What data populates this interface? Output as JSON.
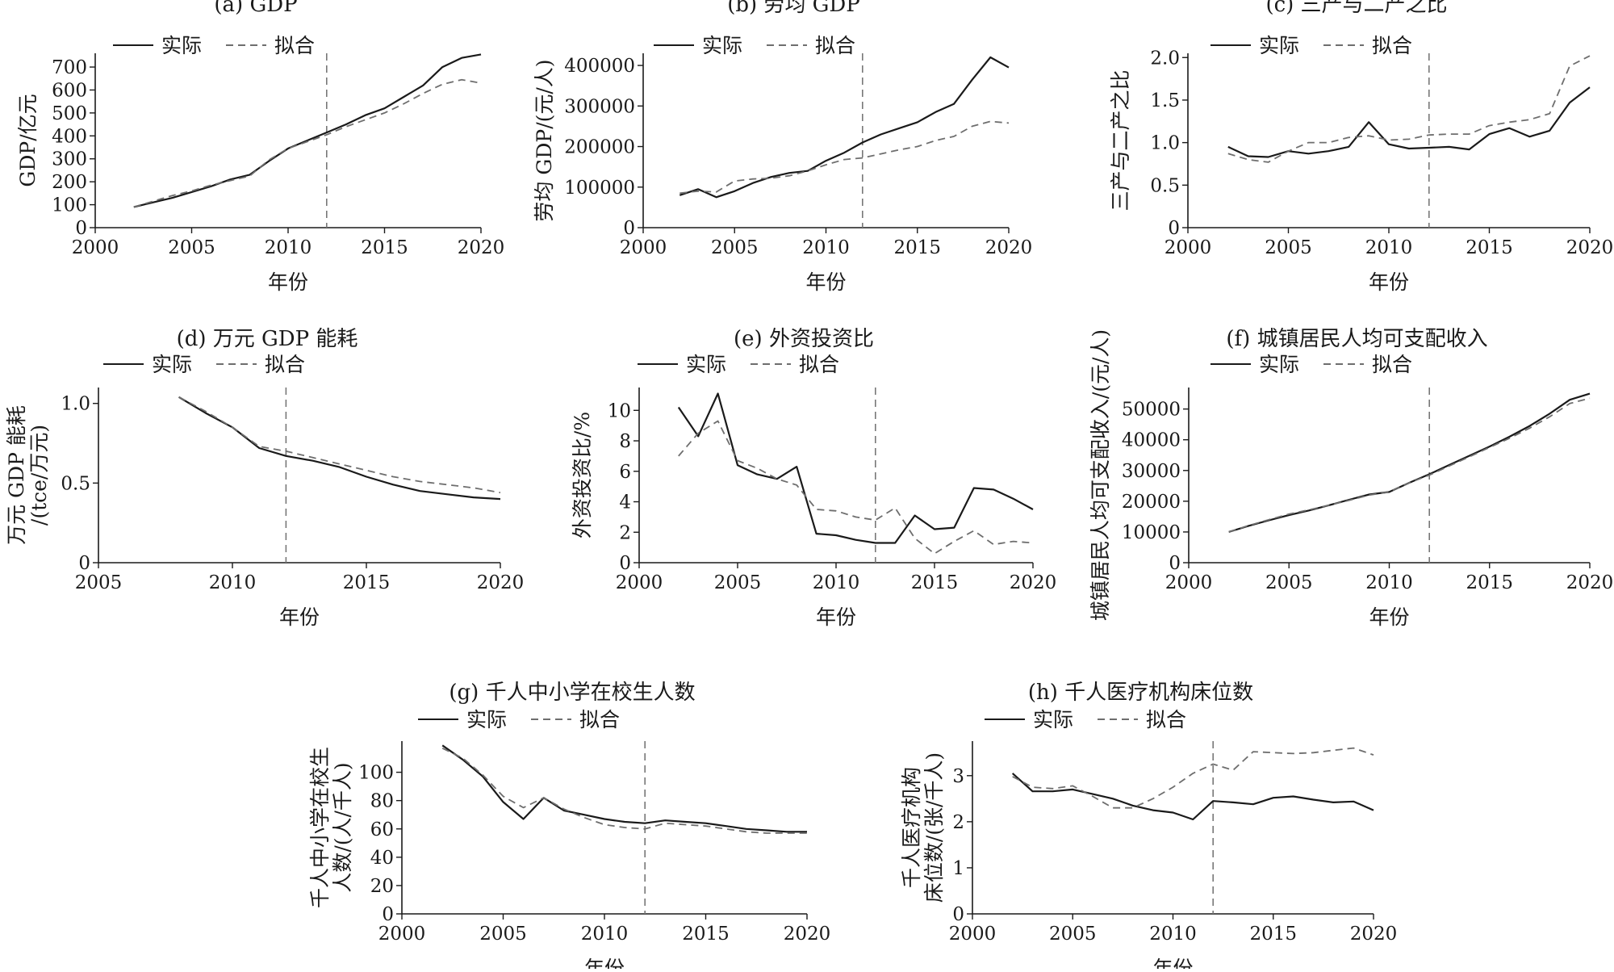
{
  "figure": {
    "legend": {
      "actual": "实际",
      "fitted": "拟合"
    },
    "styles": {
      "actual_color": "#1a1a1a",
      "fitted_color": "#6e6e6e",
      "vline_color": "#777777",
      "fitted_dash": "dashed",
      "vline_dash": "dashed"
    }
  },
  "chart_data": [
    {
      "id": "a",
      "type": "line",
      "title": "(a) GDP",
      "xlabel": "年份",
      "ylabel": "GDP/亿元",
      "ylabel_lines": [
        "GDP/亿元"
      ],
      "xlim": [
        2000,
        2020
      ],
      "ylim": [
        0,
        760
      ],
      "xticks": [
        2000,
        2005,
        2010,
        2015,
        2020
      ],
      "yticks": [
        0,
        100,
        200,
        300,
        400,
        500,
        600,
        700
      ],
      "ytick_labels": [
        "0",
        "100",
        "200",
        "300",
        "400",
        "500",
        "600",
        "700"
      ],
      "vline": 2012,
      "x": [
        2002,
        2003,
        2004,
        2005,
        2006,
        2007,
        2008,
        2009,
        2010,
        2011,
        2012,
        2013,
        2014,
        2015,
        2016,
        2017,
        2018,
        2019,
        2020
      ],
      "series": [
        {
          "name": "实际",
          "values": [
            90,
            110,
            130,
            155,
            180,
            210,
            230,
            290,
            345,
            380,
            415,
            450,
            490,
            520,
            570,
            620,
            700,
            740,
            755
          ]
        },
        {
          "name": "拟合",
          "values": [
            90,
            115,
            140,
            160,
            185,
            205,
            225,
            295,
            345,
            375,
            405,
            440,
            470,
            500,
            540,
            585,
            625,
            645,
            630
          ]
        }
      ]
    },
    {
      "id": "b",
      "type": "line",
      "title": "(b) 劳均 GDP",
      "xlabel": "年份",
      "ylabel": "劳均 GDP/(元/人)",
      "ylabel_lines": [
        "劳均 GDP/(元/人)"
      ],
      "xlim": [
        2000,
        2020
      ],
      "ylim": [
        0,
        430000
      ],
      "xticks": [
        2000,
        2005,
        2010,
        2015,
        2020
      ],
      "yticks": [
        0,
        100000,
        200000,
        300000,
        400000
      ],
      "ytick_labels": [
        "0",
        "100000",
        "200000",
        "300000",
        "400000"
      ],
      "vline": 2012,
      "x": [
        2002,
        2003,
        2004,
        2005,
        2006,
        2007,
        2008,
        2009,
        2010,
        2011,
        2012,
        2013,
        2014,
        2015,
        2016,
        2017,
        2018,
        2019,
        2020
      ],
      "series": [
        {
          "name": "实际",
          "values": [
            80000,
            95000,
            75000,
            90000,
            110000,
            125000,
            135000,
            140000,
            165000,
            185000,
            210000,
            230000,
            245000,
            260000,
            285000,
            305000,
            365000,
            420000,
            395000
          ]
        },
        {
          "name": "拟合",
          "values": [
            85000,
            90000,
            88000,
            115000,
            120000,
            122000,
            128000,
            140000,
            155000,
            168000,
            172000,
            182000,
            192000,
            200000,
            215000,
            225000,
            250000,
            262000,
            258000
          ]
        }
      ]
    },
    {
      "id": "c",
      "type": "line",
      "title": "(c) 三产与二产之比",
      "xlabel": "年份",
      "ylabel": "三产与二产之比",
      "ylabel_lines": [
        "三产与二产之比"
      ],
      "xlim": [
        2000,
        2020
      ],
      "ylim": [
        0,
        2.05
      ],
      "xticks": [
        2000,
        2005,
        2010,
        2015,
        2020
      ],
      "yticks": [
        0,
        0.5,
        1.0,
        1.5,
        2.0
      ],
      "ytick_labels": [
        "0",
        "0.5",
        "1.0",
        "1.5",
        "2.0"
      ],
      "vline": 2012,
      "x": [
        2002,
        2003,
        2004,
        2005,
        2006,
        2007,
        2008,
        2009,
        2010,
        2011,
        2012,
        2013,
        2014,
        2015,
        2016,
        2017,
        2018,
        2019,
        2020
      ],
      "series": [
        {
          "name": "实际",
          "values": [
            0.95,
            0.84,
            0.83,
            0.9,
            0.87,
            0.9,
            0.95,
            1.24,
            0.98,
            0.93,
            0.94,
            0.95,
            0.92,
            1.1,
            1.17,
            1.07,
            1.14,
            1.47,
            1.65
          ]
        },
        {
          "name": "拟合",
          "values": [
            0.87,
            0.8,
            0.77,
            0.9,
            1.0,
            1.0,
            1.06,
            1.08,
            1.03,
            1.04,
            1.09,
            1.1,
            1.1,
            1.2,
            1.24,
            1.27,
            1.34,
            1.9,
            2.02
          ]
        }
      ]
    },
    {
      "id": "d",
      "type": "line",
      "title": "(d) 万元 GDP 能耗",
      "xlabel": "年份",
      "ylabel": "万元 GDP 能耗 /(tce/万元)",
      "ylabel_lines": [
        "万元 GDP 能耗",
        "/(tce/万元)"
      ],
      "xlim": [
        2005,
        2020
      ],
      "ylim": [
        0,
        1.1
      ],
      "xticks": [
        2005,
        2010,
        2015,
        2020
      ],
      "yticks": [
        0,
        0.5,
        1.0
      ],
      "ytick_labels": [
        "0",
        "0.5",
        "1.0"
      ],
      "vline": 2012,
      "x": [
        2008,
        2009,
        2010,
        2011,
        2012,
        2013,
        2014,
        2015,
        2016,
        2017,
        2018,
        2019,
        2020
      ],
      "series": [
        {
          "name": "实际",
          "values": [
            1.04,
            0.94,
            0.85,
            0.72,
            0.67,
            0.64,
            0.6,
            0.54,
            0.49,
            0.45,
            0.43,
            0.41,
            0.4
          ]
        },
        {
          "name": "拟合",
          "values": [
            1.04,
            0.95,
            0.85,
            0.73,
            0.7,
            0.66,
            0.62,
            0.58,
            0.54,
            0.51,
            0.49,
            0.47,
            0.44
          ]
        }
      ]
    },
    {
      "id": "e",
      "type": "line",
      "title": "(e) 外资投资比",
      "xlabel": "年份",
      "ylabel": "外资投资比/%",
      "ylabel_lines": [
        "外资投资比/%"
      ],
      "xlim": [
        2000,
        2020
      ],
      "ylim": [
        0,
        11.5
      ],
      "xticks": [
        2000,
        2005,
        2010,
        2015,
        2020
      ],
      "yticks": [
        0,
        2,
        4,
        6,
        8,
        10
      ],
      "ytick_labels": [
        "0",
        "2",
        "4",
        "6",
        "8",
        "10"
      ],
      "vline": 2012,
      "x": [
        2002,
        2003,
        2004,
        2005,
        2006,
        2007,
        2008,
        2009,
        2010,
        2011,
        2012,
        2013,
        2014,
        2015,
        2016,
        2017,
        2018,
        2019,
        2020
      ],
      "series": [
        {
          "name": "实际",
          "values": [
            10.2,
            8.3,
            11.1,
            6.4,
            5.8,
            5.5,
            6.3,
            1.9,
            1.8,
            1.5,
            1.3,
            1.3,
            3.1,
            2.2,
            2.3,
            4.9,
            4.8,
            4.2,
            3.5
          ]
        },
        {
          "name": "拟合",
          "values": [
            7.0,
            8.5,
            9.3,
            6.7,
            6.2,
            5.5,
            5.1,
            3.5,
            3.4,
            3.0,
            2.8,
            3.6,
            1.6,
            0.6,
            1.4,
            2.1,
            1.2,
            1.4,
            1.3
          ]
        }
      ]
    },
    {
      "id": "f",
      "type": "line",
      "title": "(f) 城镇居民人均可支配收入",
      "xlabel": "年份",
      "ylabel": "城镇居民人均可支配收入/(元/人)",
      "ylabel_lines": [
        "城镇居民人均可支配收入/(元/人)"
      ],
      "xlim": [
        2000,
        2020
      ],
      "ylim": [
        0,
        57000
      ],
      "xticks": [
        2000,
        2005,
        2010,
        2015,
        2020
      ],
      "yticks": [
        0,
        10000,
        20000,
        30000,
        40000,
        50000
      ],
      "ytick_labels": [
        "0",
        "10000",
        "20000",
        "30000",
        "40000",
        "50000"
      ],
      "vline": 2012,
      "x": [
        2002,
        2003,
        2004,
        2005,
        2006,
        2007,
        2008,
        2009,
        2010,
        2011,
        2012,
        2013,
        2014,
        2015,
        2016,
        2017,
        2018,
        2019,
        2020
      ],
      "series": [
        {
          "name": "实际",
          "values": [
            10000,
            12000,
            13800,
            15500,
            17000,
            18700,
            20500,
            22200,
            23000,
            26000,
            28800,
            31800,
            34800,
            37800,
            41000,
            44500,
            48500,
            53000,
            55000
          ]
        },
        {
          "name": "拟合",
          "values": [
            10000,
            12100,
            14000,
            15800,
            17200,
            18700,
            20300,
            22000,
            23000,
            26000,
            28500,
            31500,
            34500,
            37500,
            40500,
            43800,
            47500,
            51800,
            53500
          ]
        }
      ]
    },
    {
      "id": "g",
      "type": "line",
      "title": "(g) 千人中小学在校生人数",
      "xlabel": "年份",
      "ylabel": "千人中小学在校生人数/(人/千人)",
      "ylabel_lines": [
        "千人中小学在校生",
        "人数/(人/千人)"
      ],
      "xlim": [
        2000,
        2020
      ],
      "ylim": [
        0,
        122
      ],
      "xticks": [
        2000,
        2005,
        2010,
        2015,
        2020
      ],
      "yticks": [
        0,
        20,
        40,
        60,
        80,
        100
      ],
      "ytick_labels": [
        "0",
        "20",
        "40",
        "60",
        "80",
        "100"
      ],
      "vline": 2012,
      "x": [
        2002,
        2003,
        2004,
        2005,
        2006,
        2007,
        2008,
        2009,
        2010,
        2011,
        2012,
        2013,
        2014,
        2015,
        2016,
        2017,
        2018,
        2019,
        2020
      ],
      "series": [
        {
          "name": "实际",
          "values": [
            119,
            109,
            97,
            79,
            67,
            82,
            73,
            70,
            67,
            65,
            64,
            66,
            65,
            64,
            62,
            60,
            59,
            58,
            58
          ]
        },
        {
          "name": "拟合",
          "values": [
            117,
            110,
            98,
            83,
            75,
            82,
            74,
            68,
            63,
            61,
            60,
            64,
            63,
            62,
            60,
            58,
            57,
            57,
            57
          ]
        }
      ]
    },
    {
      "id": "h",
      "type": "line",
      "title": "(h) 千人医疗机构床位数",
      "xlabel": "年份",
      "ylabel": "千人医疗机构床位数/(张/千人)",
      "ylabel_lines": [
        "千人医疗机构",
        "床位数/(张/千人)"
      ],
      "xlim": [
        2000,
        2020
      ],
      "ylim": [
        0,
        3.75
      ],
      "xticks": [
        2000,
        2005,
        2010,
        2015,
        2020
      ],
      "yticks": [
        0,
        1,
        2,
        3
      ],
      "ytick_labels": [
        "0",
        "1",
        "2",
        "3"
      ],
      "vline": 2012,
      "x": [
        2002,
        2003,
        2004,
        2005,
        2006,
        2007,
        2008,
        2009,
        2010,
        2011,
        2012,
        2013,
        2014,
        2015,
        2016,
        2017,
        2018,
        2019,
        2020
      ],
      "series": [
        {
          "name": "实际",
          "values": [
            3.05,
            2.66,
            2.66,
            2.7,
            2.6,
            2.5,
            2.35,
            2.25,
            2.2,
            2.05,
            2.45,
            2.42,
            2.38,
            2.52,
            2.55,
            2.48,
            2.42,
            2.44,
            2.25
          ]
        },
        {
          "name": "拟合",
          "values": [
            2.98,
            2.75,
            2.72,
            2.78,
            2.55,
            2.3,
            2.3,
            2.5,
            2.75,
            3.05,
            3.25,
            3.12,
            3.52,
            3.5,
            3.48,
            3.5,
            3.55,
            3.6,
            3.45
          ]
        }
      ]
    }
  ]
}
